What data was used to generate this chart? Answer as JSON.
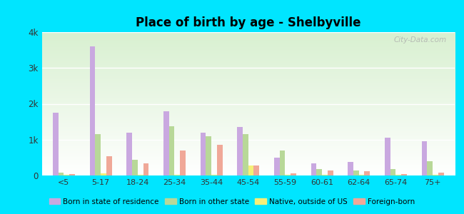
{
  "title": "Place of birth by age - Shelbyville",
  "categories": [
    "<5",
    "5-17",
    "18-24",
    "25-34",
    "35-44",
    "45-54",
    "55-59",
    "60-61",
    "62-64",
    "65-74",
    "75+"
  ],
  "series": {
    "Born in state of residence": [
      1750,
      3600,
      1200,
      1800,
      1200,
      1350,
      500,
      330,
      370,
      1050,
      950
    ],
    "Born in other state": [
      80,
      1150,
      430,
      1380,
      1100,
      1150,
      700,
      170,
      140,
      180,
      400
    ],
    "Native, outside of US": [
      20,
      60,
      15,
      20,
      20,
      270,
      20,
      20,
      15,
      25,
      20
    ],
    "Foreign-born": [
      40,
      530,
      330,
      700,
      850,
      280,
      50,
      130,
      120,
      35,
      70
    ]
  },
  "colors": {
    "Born in state of residence": "#c9a8e0",
    "Born in other state": "#b8d898",
    "Native, outside of US": "#f5f078",
    "Foreign-born": "#f0a898"
  },
  "ylim": [
    0,
    4000
  ],
  "yticks": [
    0,
    1000,
    2000,
    3000,
    4000
  ],
  "ytick_labels": [
    "0",
    "1k",
    "2k",
    "3k",
    "4k"
  ],
  "background": "#00e5ff",
  "watermark": "City-Data.com",
  "legend_labels": [
    "Born in state of residence",
    "Born in other state",
    "Native, outside of US",
    "Foreign-born"
  ]
}
